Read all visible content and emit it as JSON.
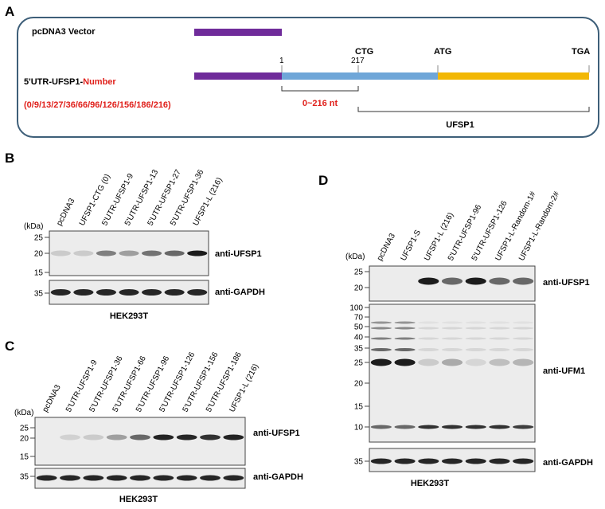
{
  "panels": {
    "A": {
      "label": "A",
      "vector_label": "pcDNA3 Vector",
      "construct_label": "5'UTR-UFSP1-",
      "construct_number": "Number",
      "numbers": "(0/9/13/27/36/66/96/126/156/186/216)",
      "pos_start": "1",
      "pos_217": "217",
      "ctg": "CTG",
      "atg": "ATG",
      "tga": "TGA",
      "range_label": "0~216 nt",
      "orf_label": "UFSP1"
    },
    "B": {
      "label": "B",
      "kda": "(kDa)",
      "lanes": [
        "pcDNA3",
        "UFSP1-CTG (0)",
        "5'UTR-UFSP1-9",
        "5'UTR-UFSP1-13",
        "5'UTR-UFSP1-27",
        "5'UTR-UFSP1-36",
        "UFSP1-L (216)"
      ],
      "markers": [
        "25",
        "20",
        "15",
        "35"
      ],
      "antibodies": [
        "anti-UFSP1",
        "anti-GAPDH"
      ],
      "cell_line": "HEK293T"
    },
    "C": {
      "label": "C",
      "kda": "(kDa)",
      "lanes": [
        "pcDNA3",
        "5'UTR-UFSP1-9",
        "5'UTR-UFSP1-36",
        "5'UTR-UFSP1-66",
        "5'UTR-UFSP1-96",
        "5'UTR-UFSP1-126",
        "5'UTR-UFSP1-156",
        "5'UTR-UFSP1-186",
        "UFSP1-L (216)"
      ],
      "markers": [
        "25",
        "20",
        "15",
        "35"
      ],
      "antibodies": [
        "anti-UFSP1",
        "anti-GAPDH"
      ],
      "cell_line": "HEK293T"
    },
    "D": {
      "label": "D",
      "kda": "(kDa)",
      "lanes": [
        "pcDNA3",
        "UFSP1-S",
        "UFSP1-L (216)",
        "5'UTR-UFSP1-96",
        "5'UTR-UFSP1-126",
        "UFSP1-L-Random-1#",
        "UFSP1-L-Random-2#"
      ],
      "markers": [
        "25",
        "20",
        "100",
        "70",
        "50",
        "40",
        "35",
        "25",
        "20",
        "15",
        "10",
        "35"
      ],
      "antibodies": [
        "anti-UFSP1",
        "anti-UFM1",
        "anti-GAPDH"
      ],
      "cell_line": "HEK293T"
    }
  }
}
